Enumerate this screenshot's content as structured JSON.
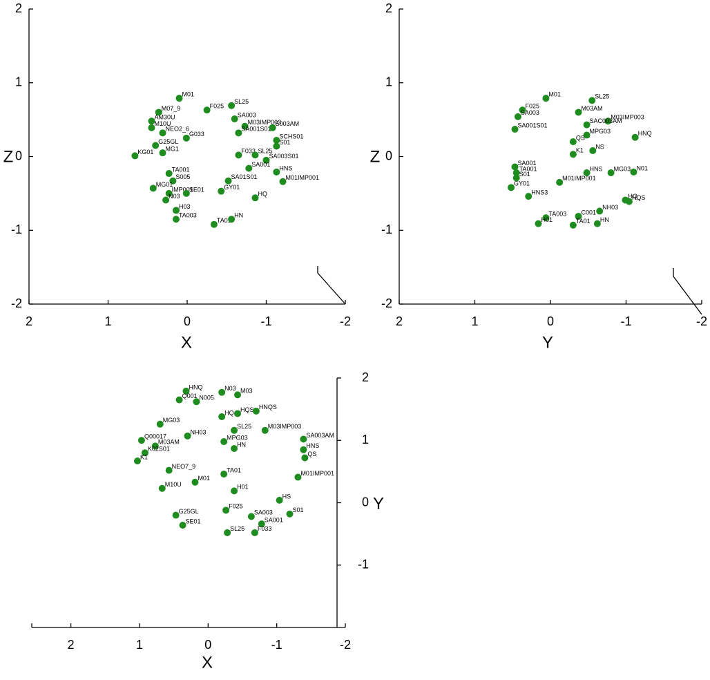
{
  "chart_data": [
    {
      "type": "scatter",
      "x_label": "X",
      "y_label": "Z",
      "color": "#1e8c1e",
      "xlim": [
        2,
        -2
      ],
      "ylim": [
        -2,
        2
      ],
      "xticks": [
        2,
        1,
        0,
        -1,
        -2
      ],
      "yticks": [
        2,
        1,
        0,
        -1,
        -2
      ],
      "x": [
        0.1,
        -0.25,
        -0.56,
        -0.6,
        -0.73,
        -0.65,
        -1.08,
        -1.13,
        -1.13,
        -0.65,
        -0.86,
        -1.0,
        -0.78,
        -1.13,
        -1.21,
        -0.52,
        -0.43,
        0.18,
        0.23,
        0.43,
        0.23,
        0.01,
        -0.86,
        0.14,
        -0.34,
        -0.56,
        0.31,
        0.45,
        0.45,
        0.36,
        0.01,
        0.4,
        0.66,
        0.31,
        0.14,
        0.27
      ],
      "values": [
        0.79,
        0.63,
        0.69,
        0.51,
        0.41,
        0.32,
        0.39,
        0.22,
        0.14,
        0.02,
        0.02,
        -0.05,
        -0.16,
        -0.21,
        -0.34,
        -0.33,
        -0.47,
        -0.33,
        -0.23,
        -0.43,
        -0.5,
        -0.5,
        -0.56,
        -0.85,
        -0.92,
        -0.85,
        0.32,
        0.48,
        0.39,
        0.6,
        0.25,
        0.15,
        0.01,
        0.05,
        -0.73,
        -0.59
      ],
      "labels": [
        "M01",
        "F025",
        "SL25",
        "SA003",
        "M03IMP003",
        "SA001S01",
        "S003AM",
        "SCHS01",
        "S01",
        "F033",
        "SL25",
        "SA003S01",
        "SA001",
        "HNS",
        "M01IMP001",
        "SA01S01",
        "GY01",
        "S005",
        "TA001",
        "MG01",
        "IMP001",
        "SE01",
        "HQ",
        "TA003",
        "TA01",
        "HN",
        "NEO2_6",
        "AM30U",
        "M10U",
        "M07_9",
        "G033",
        "G25GL",
        "KG01",
        "MG1",
        "H03",
        "N03"
      ]
    },
    {
      "type": "scatter",
      "x_label": "Y",
      "y_label": "Z",
      "color": "#1e8c1e",
      "xlim": [
        2,
        -2
      ],
      "ylim": [
        -2,
        2
      ],
      "xticks": [
        2,
        1,
        0,
        -1,
        -2
      ],
      "yticks": [
        2,
        1,
        0,
        -1,
        -2
      ],
      "x": [
        0.06,
        -0.55,
        0.37,
        0.43,
        -0.37,
        -0.76,
        0.47,
        -0.48,
        -0.48,
        -1.12,
        -0.3,
        -0.56,
        0.47,
        0.45,
        -0.48,
        -0.8,
        -1.1,
        -0.12,
        0.52,
        0.45,
        0.29,
        -0.99,
        -1.04,
        -0.65,
        0.06,
        -0.37,
        0.16,
        -0.3,
        -0.62,
        -0.3
      ],
      "values": [
        0.79,
        0.76,
        0.63,
        0.54,
        0.6,
        0.48,
        0.37,
        0.43,
        0.29,
        0.26,
        0.2,
        0.08,
        -0.14,
        -0.22,
        -0.22,
        -0.22,
        -0.21,
        -0.35,
        -0.42,
        -0.29,
        -0.54,
        -0.59,
        -0.61,
        -0.74,
        -0.83,
        -0.81,
        -0.91,
        -0.93,
        -0.91,
        0.03
      ],
      "labels": [
        "M01",
        "SL25",
        "F025",
        "SA003",
        "M03AM",
        "M03IMP003",
        "SA001S01",
        "SAC003AM",
        "MPG03",
        "HNQ",
        "QS",
        "NS",
        "SA001",
        "TA001",
        "HNS",
        "MG03",
        "N01",
        "M01IMP001",
        "GY01",
        "S01",
        "HNS3",
        "HQ",
        "HQS",
        "NH03",
        "TA003",
        "C001",
        "H01",
        "TA01",
        "HN",
        "K1"
      ]
    },
    {
      "type": "scatter",
      "x_label": "X",
      "y_label": "Y",
      "color": "#1e8c1e",
      "xlim": [
        2.57,
        -2
      ],
      "ylim": [
        -2,
        2
      ],
      "xticks": [
        2,
        1,
        0,
        -1,
        -2
      ],
      "yticks": [
        2,
        1,
        0,
        -1
      ],
      "x": [
        0.32,
        -0.2,
        -0.43,
        0.17,
        0.42,
        -0.43,
        -0.2,
        -0.7,
        0.7,
        -0.38,
        -0.83,
        -1.39,
        0.97,
        0.77,
        -0.23,
        0.3,
        -1.39,
        -1.41,
        -0.38,
        0.92,
        1.03,
        0.57,
        -0.23,
        0.19,
        -1.31,
        0.67,
        -0.38,
        -0.26,
        -0.63,
        -0.78,
        -1.19,
        -1.04,
        0.37,
        -0.68,
        -0.28,
        0.47
      ],
      "values": [
        1.79,
        1.77,
        1.73,
        1.62,
        1.65,
        1.43,
        1.38,
        1.47,
        1.26,
        1.16,
        1.16,
        1.02,
        1.0,
        0.91,
        0.98,
        1.07,
        0.85,
        0.72,
        0.87,
        0.8,
        0.67,
        0.52,
        0.46,
        0.33,
        0.41,
        0.23,
        0.19,
        -0.12,
        -0.22,
        -0.34,
        -0.18,
        0.04,
        -0.36,
        -0.48,
        -0.48,
        -0.2
      ],
      "labels": [
        "HNQ",
        "N03",
        "M03",
        "N005",
        "Q001",
        "HQS",
        "HQ",
        "HNQS",
        "MG03",
        "SL25",
        "M03IMP003",
        "SA003AM",
        "Q00017",
        "M03AM",
        "MPG03",
        "NH03",
        "HNS",
        "QS",
        "HN",
        "K02S01",
        "K1",
        "NEO7_9",
        "TA01",
        "M01",
        "M01IMP001",
        "M10U",
        "H01",
        "F025",
        "SA003",
        "SA001",
        "S01",
        "HS",
        "SE01",
        "F033",
        "SL25",
        "G25GL"
      ]
    }
  ]
}
